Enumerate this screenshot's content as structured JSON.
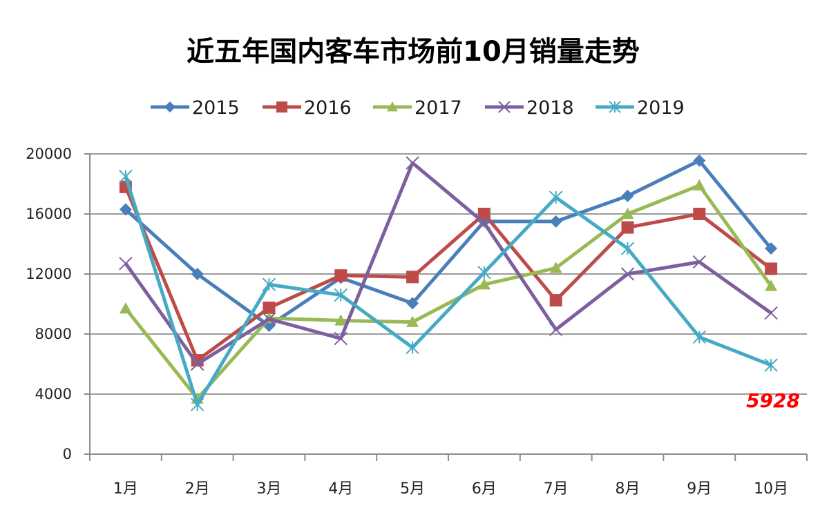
{
  "chart_data": {
    "type": "line",
    "title": "近五年国内客车市场前10月销量走势",
    "xlabel": "",
    "ylabel": "",
    "categories": [
      "1月",
      "2月",
      "3月",
      "4月",
      "5月",
      "6月",
      "7月",
      "8月",
      "9月",
      "10月"
    ],
    "ylim": [
      0,
      20000
    ],
    "yticks": [
      "0",
      "4000",
      "8000",
      "12000",
      "16000",
      "20000"
    ],
    "ytick_values": [
      0,
      4000,
      8000,
      12000,
      16000,
      20000
    ],
    "grid": true,
    "legend_position": "top",
    "series": [
      {
        "name": "2015",
        "color": "#4A7EBB",
        "marker": "diamond",
        "values": [
          16300,
          12000,
          8550,
          11750,
          10050,
          15500,
          15500,
          17200,
          19550,
          13700
        ]
      },
      {
        "name": "2016",
        "color": "#BE4B48",
        "marker": "square",
        "values": [
          17800,
          6250,
          9750,
          11900,
          11800,
          16000,
          10250,
          15100,
          16000,
          12350
        ]
      },
      {
        "name": "2017",
        "color": "#98B954",
        "marker": "triangle",
        "values": [
          9700,
          3700,
          9050,
          8900,
          8800,
          11300,
          12400,
          16000,
          17900,
          11200
        ]
      },
      {
        "name": "2018",
        "color": "#7D5FA0",
        "marker": "x",
        "values": [
          12700,
          6000,
          9000,
          7700,
          19400,
          15400,
          8300,
          12000,
          12800,
          9400
        ]
      },
      {
        "name": "2019",
        "color": "#46AAC5",
        "marker": "star",
        "values": [
          18500,
          3300,
          11300,
          10600,
          7100,
          12100,
          17100,
          13700,
          7800,
          5928
        ]
      }
    ],
    "annotations": [
      {
        "text": "5928",
        "series": "2019",
        "category": "10月",
        "color": "#FF0000"
      }
    ]
  }
}
